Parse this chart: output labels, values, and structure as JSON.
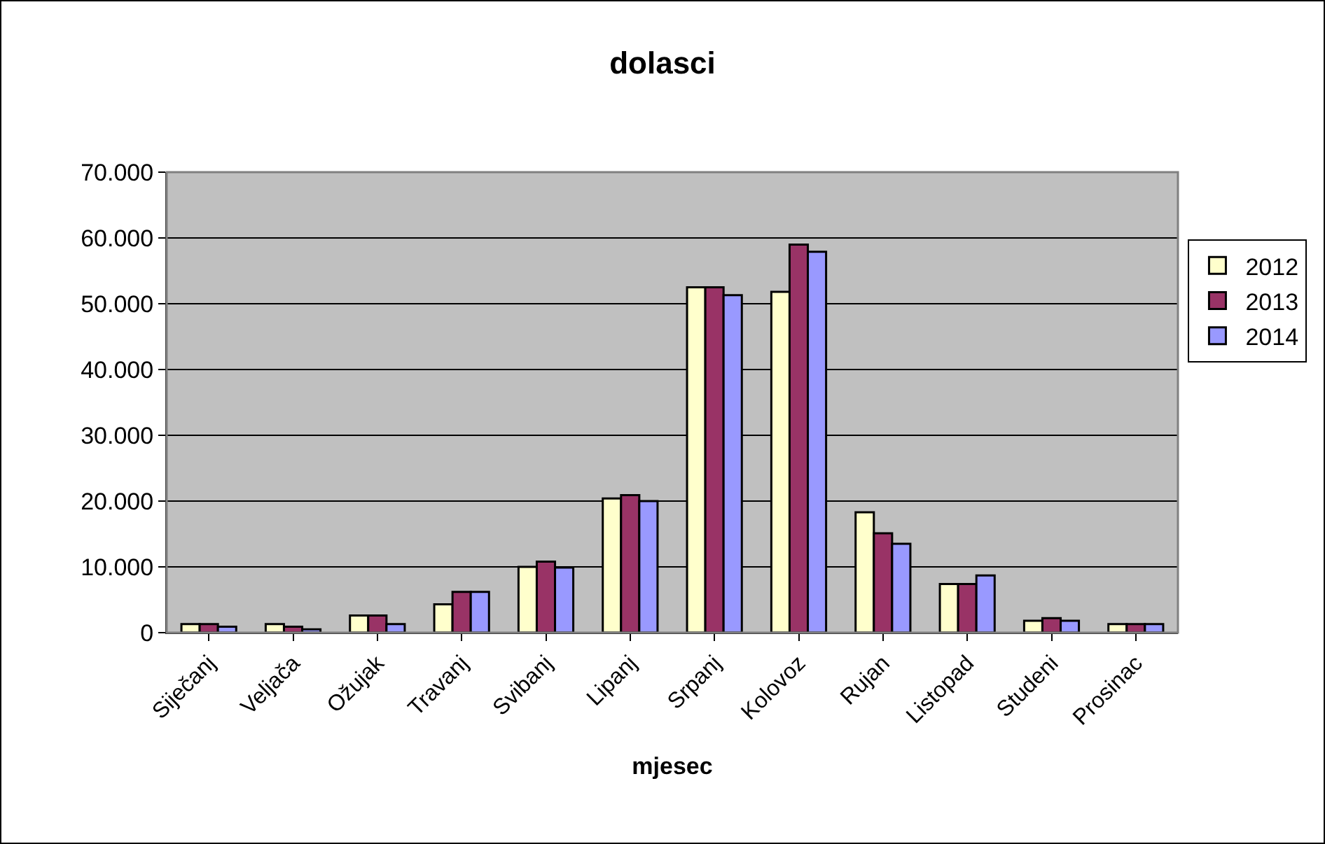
{
  "chart_data": {
    "type": "bar",
    "title": "dolasci",
    "xlabel": "mjesec",
    "categories": [
      "Siječanj",
      "Veljača",
      "Ožujak",
      "Travanj",
      "Svibanj",
      "Lipanj",
      "Srpanj",
      "Kolovoz",
      "Rujan",
      "Listopad",
      "Studeni",
      "Prosinac"
    ],
    "series": [
      {
        "name": "2012",
        "color": "#ffffcc",
        "values": [
          1300,
          1300,
          2600,
          4300,
          10000,
          20400,
          52500,
          51800,
          18300,
          7400,
          1800,
          1300
        ]
      },
      {
        "name": "2013",
        "color": "#993366",
        "values": [
          1300,
          900,
          2600,
          6200,
          10800,
          20900,
          52500,
          59000,
          15100,
          7400,
          2200,
          1300
        ]
      },
      {
        "name": "2014",
        "color": "#9999ff",
        "values": [
          900,
          500,
          1300,
          6200,
          9900,
          20000,
          51300,
          57900,
          13500,
          8700,
          1800,
          1300
        ]
      }
    ],
    "ylim": [
      0,
      70000
    ],
    "yticks": [
      {
        "value": 0,
        "label": "0"
      },
      {
        "value": 10000,
        "label": "10.000"
      },
      {
        "value": 20000,
        "label": "20.000"
      },
      {
        "value": 30000,
        "label": "30.000"
      },
      {
        "value": 40000,
        "label": "40.000"
      },
      {
        "value": 50000,
        "label": "50.000"
      },
      {
        "value": 60000,
        "label": "60.000"
      },
      {
        "value": 70000,
        "label": "70.000"
      }
    ],
    "grid": "y",
    "legend": "right"
  }
}
